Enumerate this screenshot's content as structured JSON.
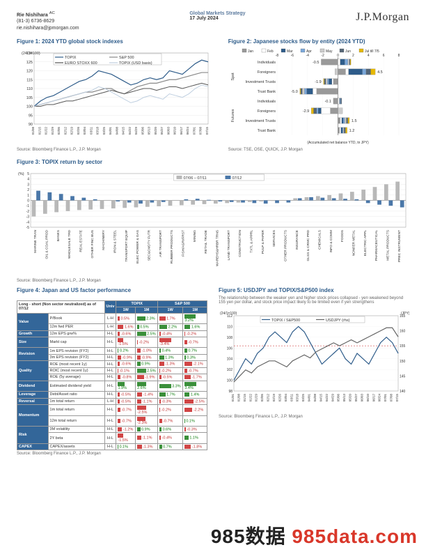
{
  "header": {
    "author": "Rie Nishihara",
    "ac": "AC",
    "phone": "(81-3) 6736-8629",
    "email": "rie.nishihara@jpmorgan.com",
    "strategy": "Global Markets Strategy",
    "date": "17 July 2024",
    "brand": "J.P.Morgan"
  },
  "fig1": {
    "title": "Figure 1: 2024 YTD global stock indexes",
    "ylabel": "(24/1=100)",
    "legend": [
      "TOPIX",
      "S&P 500",
      "EURO STOXX 600",
      "TOPIX (USD basis)"
    ],
    "colors": [
      "#2e5c8a",
      "#888888",
      "#555555",
      "#bfcfe0"
    ],
    "ylim": [
      90,
      130
    ],
    "ytick_step": 5,
    "x_labels": [
      "01/08",
      "01/15",
      "01/22",
      "01/29",
      "02/05",
      "02/12",
      "02/19",
      "02/26",
      "03/04",
      "03/11",
      "03/18",
      "03/25",
      "04/01",
      "04/08",
      "04/15",
      "04/22",
      "04/29",
      "05/06",
      "05/13",
      "05/20",
      "05/27",
      "06/03",
      "06/10",
      "06/17",
      "06/24",
      "07/01",
      "07/08",
      "07/15"
    ],
    "series": [
      [
        100,
        103,
        105,
        106,
        108,
        110,
        112,
        114,
        115,
        117,
        120,
        119,
        118,
        116,
        114,
        112,
        113,
        115,
        116,
        115,
        116,
        120,
        119,
        118,
        121,
        124,
        126,
        125
      ],
      [
        100,
        101,
        102,
        103,
        104,
        105,
        106,
        107,
        108,
        108,
        109,
        110,
        110,
        108,
        107,
        109,
        111,
        112,
        113,
        113,
        114,
        115,
        115,
        116,
        117,
        118,
        119,
        119
      ],
      [
        100,
        100,
        101,
        101,
        102,
        103,
        103,
        104,
        105,
        106,
        107,
        108,
        109,
        108,
        107,
        108,
        109,
        110,
        110,
        109,
        110,
        111,
        111,
        110,
        111,
        112,
        113,
        112
      ],
      [
        100,
        101,
        102,
        103,
        104,
        105,
        106,
        107,
        108,
        109,
        111,
        110,
        108,
        106,
        104,
        102,
        103,
        105,
        106,
        105,
        104,
        107,
        106,
        105,
        107,
        110,
        112,
        111
      ]
    ],
    "source": "Source: Bloomberg Finance L.P., J.P. Morgan"
  },
  "fig2": {
    "title": "Figure 2: Japanese stocks flow by entity (2024 YTD)",
    "legend": [
      "Jan",
      "Feb",
      "Mar",
      "Apr",
      "May",
      "Jun",
      "Jul till 7/5"
    ],
    "leg_colors": [
      "#999999",
      "#ffffff",
      "#2e5c8a",
      "#7aa7d9",
      "#cccccc",
      "#556677",
      "#e6b800"
    ],
    "xlim": [
      -8,
      8
    ],
    "xtick_step": 2,
    "groups": [
      "Spot",
      "Futures"
    ],
    "rows": [
      {
        "grp": 0,
        "label": "Individuals",
        "val": -0.5,
        "segs": [
          [
            -2.2,
            "#999"
          ],
          [
            0.3,
            "#fff"
          ],
          [
            0.6,
            "#2e5c8a"
          ],
          [
            0.4,
            "#7aa7d9"
          ],
          [
            0.2,
            "#ccc"
          ],
          [
            0.1,
            "#556677"
          ],
          [
            0.1,
            "#e6b800"
          ]
        ]
      },
      {
        "grp": 0,
        "label": "Foreigners",
        "val": 4.5,
        "segs": [
          [
            1.0,
            "#999"
          ],
          [
            0.4,
            "#fff"
          ],
          [
            1.8,
            "#2e5c8a"
          ],
          [
            0.5,
            "#7aa7d9"
          ],
          [
            -0.4,
            "#ccc"
          ],
          [
            0.6,
            "#556677"
          ],
          [
            0.6,
            "#e6b800"
          ]
        ]
      },
      {
        "grp": 0,
        "label": "Investment Trusts",
        "val": -1.9,
        "segs": [
          [
            -0.6,
            "#999"
          ],
          [
            -0.2,
            "#fff"
          ],
          [
            -0.4,
            "#2e5c8a"
          ],
          [
            -0.2,
            "#7aa7d9"
          ],
          [
            -0.2,
            "#ccc"
          ],
          [
            -0.2,
            "#556677"
          ],
          [
            -0.1,
            "#e6b800"
          ]
        ]
      },
      {
        "grp": 0,
        "label": "Trust Bank",
        "val": -5.0,
        "segs": [
          [
            -2.8,
            "#999"
          ],
          [
            -0.5,
            "#fff"
          ],
          [
            -0.8,
            "#2e5c8a"
          ],
          [
            -0.3,
            "#7aa7d9"
          ],
          [
            -0.3,
            "#ccc"
          ],
          [
            -0.2,
            "#556677"
          ],
          [
            -0.1,
            "#e6b800"
          ]
        ]
      },
      {
        "grp": 1,
        "label": "Individuals",
        "val": -0.1,
        "segs": [
          [
            -0.6,
            "#999"
          ],
          [
            0.2,
            "#fff"
          ],
          [
            0.1,
            "#2e5c8a"
          ],
          [
            0.1,
            "#7aa7d9"
          ],
          [
            0.0,
            "#ccc"
          ],
          [
            0.1,
            "#556677"
          ],
          [
            0.0,
            "#e6b800"
          ]
        ]
      },
      {
        "grp": 1,
        "label": "Foreigners",
        "val": -2.9,
        "segs": [
          [
            -1.0,
            "#999"
          ],
          [
            -1.2,
            "#fff"
          ],
          [
            -0.4,
            "#2e5c8a"
          ],
          [
            -0.2,
            "#7aa7d9"
          ],
          [
            0.6,
            "#ccc"
          ],
          [
            -0.4,
            "#556677"
          ],
          [
            -0.3,
            "#e6b800"
          ]
        ]
      },
      {
        "grp": 1,
        "label": "Investment Trusts",
        "val": 1.5,
        "segs": [
          [
            0.3,
            "#999"
          ],
          [
            0.2,
            "#fff"
          ],
          [
            0.2,
            "#2e5c8a"
          ],
          [
            0.2,
            "#7aa7d9"
          ],
          [
            0.2,
            "#ccc"
          ],
          [
            0.2,
            "#556677"
          ],
          [
            0.2,
            "#e6b800"
          ]
        ]
      },
      {
        "grp": 1,
        "label": "Trust Bank",
        "val": 1.2,
        "segs": [
          [
            0.2,
            "#999"
          ],
          [
            0.2,
            "#fff"
          ],
          [
            0.2,
            "#2e5c8a"
          ],
          [
            0.1,
            "#7aa7d9"
          ],
          [
            0.1,
            "#ccc"
          ],
          [
            0.2,
            "#556677"
          ],
          [
            0.2,
            "#e6b800"
          ]
        ]
      }
    ],
    "footnote": "(Accumulated net balance YTD, tn JPY)",
    "source": "Source: TSE, OSE, QUICK, J.P. Morgan"
  },
  "fig3": {
    "title": "Figure 3: TOPIX return by sector",
    "ylabel": "(%)",
    "legend": [
      "07/06 – 07/11",
      "07/12"
    ],
    "leg_colors": [
      "#b8b8b8",
      "#4a77a8"
    ],
    "ylim": [
      -5,
      5
    ],
    "ytick_step": 1,
    "sectors": [
      "MARINE TRAN",
      "OIL & COAL PROD",
      "BANKS",
      "WHOLESALE TRD",
      "REAL ESTATE",
      "OTHER FINC BUS",
      "MACHINERY",
      "IRON & STEEL",
      "TRANSPORT EQUIP",
      "ELEC POWER & GAS",
      "SEC&CMDTY FUTR",
      "AIR TRANSPORT",
      "RUBBER PRODUCTS",
      "FISH/AGRI/FRST",
      "MINING",
      "RETAIL TRADE",
      "WAREHS&HRBR TRNS",
      "LAND TRANSPORT",
      "CONSTRUCTION",
      "TXTL & APPRL",
      "PULP & PAPER",
      "SERVICES",
      "OTHER PRODUCTS",
      "INSURANCE",
      "GLSS & CRMC PRD",
      "CHEMICALS",
      "INFO & COMM",
      "FOODS",
      "NONFER METAL",
      "ELECTRIC APPL",
      "PHARMACEUTICAL",
      "METAL PRODUCTS",
      "PREC INSTRUMENT"
    ],
    "week": [
      -3.0,
      -2.5,
      -2.2,
      -2.0,
      -1.8,
      -1.7,
      -1.6,
      -1.5,
      -1.4,
      -1.3,
      -1.2,
      -1.1,
      -1.0,
      -0.9,
      -0.8,
      -0.7,
      -0.6,
      -0.5,
      -0.4,
      -0.3,
      -0.2,
      -0.1,
      0.0,
      0.4,
      0.6,
      0.8,
      1.0,
      1.3,
      1.6,
      2.0,
      2.5,
      3.0,
      3.5
    ],
    "day": [
      1.8,
      1.5,
      1.2,
      0.8,
      0.5,
      0.2,
      0.0,
      -0.2,
      -0.4,
      -0.6,
      -0.4,
      -0.3,
      0.0,
      0.2,
      0.3,
      0.1,
      -0.2,
      -0.3,
      -0.4,
      -0.5,
      -0.6,
      -0.5,
      -0.4,
      0.4,
      0.6,
      0.5,
      0.4,
      0.3,
      0.2,
      -0.5,
      -0.8,
      -1.0,
      -1.3
    ],
    "source": "Source: Bloomberg Finance L.P., J.P. Morgan"
  },
  "fig4": {
    "title": "Figure 4: Japan and US factor performance",
    "header1": "Long - short (Non sector neutralized) as of 07/12",
    "cols": [
      "Univ",
      "TOPIX",
      "S&P 500"
    ],
    "sub_cols": [
      "1W",
      "1M",
      "1W",
      "1M"
    ],
    "categories": [
      {
        "name": "Value",
        "rows": [
          {
            "f": "P/Book",
            "u": "L-H",
            "v": [
              "0.5%",
              "2.3%",
              "1.7%",
              "3.2%"
            ],
            "c": [
              "neg",
              "pos",
              "neg",
              "pos"
            ]
          },
          {
            "f": "12m fwd PER",
            "u": "L-H",
            "v": [
              "1.6%",
              "0.5%",
              "2.2%",
              "1.6%"
            ],
            "c": [
              "neg",
              "pos",
              "pos",
              "pos"
            ]
          }
        ]
      },
      {
        "name": "Growth",
        "rows": [
          {
            "f": "12m EPS grw%",
            "u": "H-L",
            "v": [
              "-0.6%",
              "2.5%",
              "-0.4%",
              "-0.2%"
            ],
            "c": [
              "neg",
              "pos",
              "neg",
              "neg"
            ]
          }
        ]
      },
      {
        "name": "Size",
        "rows": [
          {
            "f": "Markt cap",
            "u": "H-L",
            "v": [
              "-1.5%",
              "-0.2%",
              "-3.4%",
              "-0.7%"
            ],
            "c": [
              "neg",
              "neg",
              "neg",
              "neg"
            ]
          }
        ]
      },
      {
        "name": "Revision",
        "rows": [
          {
            "f": "1m EPS revision (FY2)",
            "u": "H-L",
            "v": [
              "0.2%",
              "-1.0%",
              "0.4%",
              "0.7%"
            ],
            "c": [
              "pos",
              "neg",
              "pos",
              "pos"
            ]
          },
          {
            "f": "3m EPS revision (FY2)",
            "u": "H-L",
            "v": [
              "-0.9%",
              "-0.9%",
              "1.3%",
              "0.3%"
            ],
            "c": [
              "neg",
              "neg",
              "pos",
              "pos"
            ]
          }
        ]
      },
      {
        "name": "Quality",
        "rows": [
          {
            "f": "ROE (most recent 1y)",
            "u": "H-L",
            "v": [
              "-0.6%",
              "0.9%",
              "-1.3%",
              "-2.1%"
            ],
            "c": [
              "neg",
              "pos",
              "neg",
              "neg"
            ]
          },
          {
            "f": "ROIC (most recent 1y)",
            "u": "H-L",
            "v": [
              "-0.1%",
              "2.5%",
              "-0.2%",
              "-0.7%"
            ],
            "c": [
              "neg",
              "pos",
              "neg",
              "neg"
            ]
          },
          {
            "f": "ROE (5y average)",
            "u": "H-L",
            "v": [
              "-0.8%",
              "-1.9%",
              "-0.5%",
              "-1.7%"
            ],
            "c": [
              "neg",
              "neg",
              "neg",
              "neg"
            ]
          }
        ]
      },
      {
        "name": "Dividend",
        "rows": [
          {
            "f": "Estimated dividend yield",
            "u": "H-L",
            "v": [
              "1.9%",
              "2.6%",
              "3.3%",
              "3.4%"
            ],
            "c": [
              "pos",
              "pos",
              "pos",
              "pos"
            ]
          }
        ]
      },
      {
        "name": "Leverage",
        "rows": [
          {
            "f": "Debt/Asset ratio",
            "u": "H-L",
            "v": [
              "-0.5%",
              "-1.4%",
              "1.7%",
              "1.4%"
            ],
            "c": [
              "neg",
              "neg",
              "pos",
              "pos"
            ]
          }
        ]
      },
      {
        "name": "Reversal",
        "rows": [
          {
            "f": "1m total return",
            "u": "L-H",
            "v": [
              "-0.5%",
              "-1.1%",
              "-0.3%",
              "-2.5%"
            ],
            "c": [
              "neg",
              "neg",
              "neg",
              "neg"
            ]
          }
        ]
      },
      {
        "name": "Momentum",
        "rows": [
          {
            "f": "1m total return",
            "u": "H-L",
            "v": [
              "-0.7%",
              "-2.5%",
              "-0.2%",
              "-2.2%"
            ],
            "c": [
              "neg",
              "neg",
              "neg",
              "neg"
            ]
          },
          {
            "f": "12m total return",
            "u": "H-L",
            "v": [
              "-0.7%",
              "-2.3%",
              "-0.7%",
              "0.1%"
            ],
            "c": [
              "neg",
              "neg",
              "neg",
              "pos"
            ]
          }
        ]
      },
      {
        "name": "Risk",
        "rows": [
          {
            "f": "3M volatility",
            "u": "H-L",
            "v": [
              "-1.2%",
              "0.9%",
              "0.6%",
              "-0.3%"
            ],
            "c": [
              "neg",
              "pos",
              "pos",
              "neg"
            ]
          },
          {
            "f": "2Y beta",
            "u": "H-L",
            "v": [
              "-1.5%",
              "-1.1%",
              "-0.4%",
              "1.1%"
            ],
            "c": [
              "neg",
              "neg",
              "neg",
              "pos"
            ]
          }
        ]
      },
      {
        "name": "CAPEX",
        "rows": [
          {
            "f": "CAPEX/assets",
            "u": "H-L",
            "v": [
              "0.1%",
              "-1.3%",
              "0.7%",
              "-1.8%"
            ],
            "c": [
              "pos",
              "neg",
              "pos",
              "neg"
            ]
          }
        ]
      }
    ],
    "source": "Source: Bloomberg Finance L.P., J.P. Morgan"
  },
  "fig5": {
    "title": "Figure 5: USDJPY and TOPIX/S&P500 index",
    "subtitle": "The relationship between the weaker yen and higher stock prices collapsed - yen weakened beyond 155 yen per dollar, and stock price impact likely to be limited even if yen strengthens",
    "left_label": "(24/1=100)",
    "right_label": "(JPY)",
    "legend": [
      "TOPIX / S&P500",
      "USDJPY (rhs)"
    ],
    "colors": [
      "#2e5c8a",
      "#666666"
    ],
    "ylim_l": [
      98,
      112
    ],
    "ytick_l": 2,
    "ylim_r": [
      140,
      165
    ],
    "ytick_r": 5,
    "ref_line": 155,
    "x_labels": [
      "01/01",
      "01/08",
      "01/15",
      "01/22",
      "01/29",
      "02/05",
      "02/12",
      "02/19",
      "02/26",
      "03/04",
      "03/11",
      "03/18",
      "03/25",
      "04/01",
      "04/08",
      "04/15",
      "04/22",
      "04/29",
      "05/06",
      "05/13",
      "05/20",
      "05/27",
      "06/03",
      "06/10",
      "06/17",
      "06/24",
      "07/01",
      "07/08",
      "07/15"
    ],
    "series_l": [
      100,
      102,
      104,
      103,
      105,
      106,
      108,
      109,
      108,
      107,
      109,
      110,
      109,
      107,
      105,
      103,
      104,
      105,
      106,
      104,
      103,
      105,
      104,
      103,
      105,
      107,
      108,
      107,
      105
    ],
    "series_r": [
      143,
      145,
      147,
      146,
      148,
      149,
      150,
      150,
      149,
      148,
      150,
      151,
      152,
      151,
      153,
      154,
      155,
      156,
      155,
      156,
      157,
      156,
      157,
      158,
      159,
      160,
      161,
      161,
      158
    ],
    "source": "Source: Bloomberg Finance L.P., J.P. Morgan"
  },
  "watermark": {
    "a": "985数据 ",
    "b": "985data.com"
  }
}
